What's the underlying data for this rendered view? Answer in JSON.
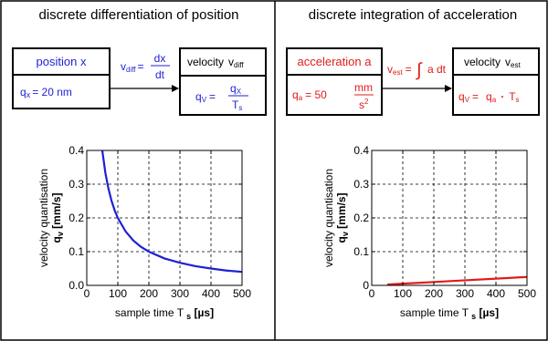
{
  "left": {
    "title": "discrete differentiation of position",
    "box_position": {
      "label": "position x",
      "value_lhs": "q",
      "value_sub": "x",
      "value_rhs": "= 20 nm"
    },
    "formula": {
      "lhs": "v",
      "lhs_sub": "diff",
      "eq": "=",
      "num": "dx",
      "den": "dt"
    },
    "box_velocity": {
      "label": "velocity",
      "label_var": "v",
      "label_sub": "diff",
      "q": "q",
      "q_sub": "V",
      "eq": "=",
      "num_q": "q",
      "num_sub": "X",
      "den_t": "T",
      "den_sub": "s"
    }
  },
  "right": {
    "title": "discrete integration of acceleration",
    "box_accel": {
      "label": "acceleration a",
      "value_lhs": "q",
      "value_sub": "a",
      "value_eq": "= 50",
      "unit_num": "mm",
      "unit_den": "s",
      "unit_exp": "2"
    },
    "formula": {
      "lhs": "v",
      "lhs_sub": "est",
      "eq": "=",
      "integral": "∫",
      "body": "a dt"
    },
    "box_velocity": {
      "label": "velocity",
      "label_var": "v",
      "label_sub": "est",
      "q": "q",
      "q_sub": "V",
      "eq": "=",
      "rhs_q": "q",
      "rhs_sub": "a",
      "dot": "·",
      "rhs_t": "T",
      "rhs_t_sub": "s"
    }
  },
  "colors": {
    "blue": "#1f1fd6",
    "red": "#e01b1b",
    "box_bg": "#ffffff",
    "border": "#000000"
  },
  "chart_data": [
    {
      "type": "line",
      "xlabel": "sample time T",
      "xlabel_sub": "s",
      "xlabel_unit": "[µs]",
      "ylabel": "velocity quantisation",
      "ylabel2": "q",
      "ylabel2_sub": "v",
      "ylabel2_unit": "[mm/s]",
      "xlim": [
        0,
        500
      ],
      "ylim": [
        0,
        0.4
      ],
      "xticks": [
        0,
        100,
        200,
        300,
        400,
        500
      ],
      "yticks": [
        0.0,
        0.1,
        0.2,
        0.3,
        0.4
      ],
      "ytick_labels": [
        "0.0",
        "0.1",
        "0.2",
        "0.3",
        "0.4"
      ],
      "grid": true,
      "series": [
        {
          "color": "#1f1fd6",
          "x": [
            50,
            60,
            70,
            80,
            90,
            100,
            125,
            150,
            175,
            200,
            250,
            300,
            350,
            400,
            450,
            500
          ],
          "y": [
            0.4,
            0.333,
            0.286,
            0.25,
            0.222,
            0.2,
            0.16,
            0.133,
            0.114,
            0.1,
            0.08,
            0.067,
            0.057,
            0.05,
            0.044,
            0.04
          ]
        }
      ]
    },
    {
      "type": "line",
      "xlabel": "sample time T",
      "xlabel_sub": "s",
      "xlabel_unit": "[µs]",
      "ylabel": "velocity quantisation",
      "ylabel2": "q",
      "ylabel2_sub": "v",
      "ylabel2_unit": "[mm/s]",
      "xlim": [
        0,
        500
      ],
      "ylim": [
        0,
        0.4
      ],
      "xticks": [
        0,
        100,
        200,
        300,
        400,
        500
      ],
      "yticks": [
        0,
        0.1,
        0.2,
        0.3,
        0.4
      ],
      "ytick_labels": [
        "0",
        "0.1",
        "0.2",
        "0.3",
        "0.4"
      ],
      "grid": true,
      "series": [
        {
          "color": "#e01b1b",
          "x": [
            50,
            100,
            200,
            300,
            400,
            500
          ],
          "y": [
            0.0025,
            0.005,
            0.01,
            0.015,
            0.02,
            0.025
          ]
        }
      ]
    }
  ]
}
